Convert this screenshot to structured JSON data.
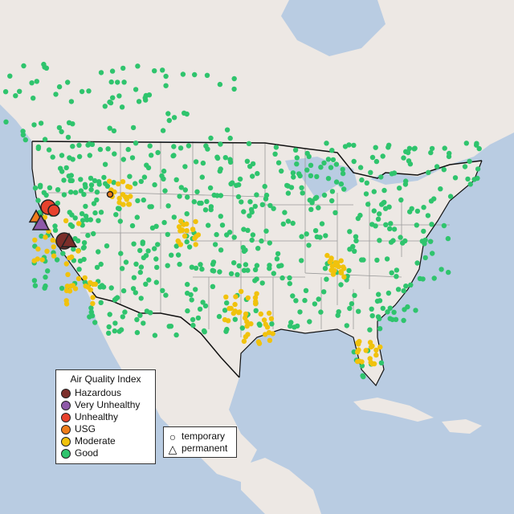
{
  "legend": {
    "title": "Air Quality Index",
    "items": [
      {
        "label": "Hazardous",
        "color": "#7b2e2a"
      },
      {
        "label": "Very Unhealthy",
        "color": "#8e59a8"
      },
      {
        "label": "Unhealthy",
        "color": "#e8422d"
      },
      {
        "label": "USG",
        "color": "#ef7d1a"
      },
      {
        "label": "Moderate",
        "color": "#f1c20c"
      },
      {
        "label": "Good",
        "color": "#2fc46d"
      }
    ]
  },
  "shape_legend": {
    "items": [
      {
        "label": "temporary",
        "icon": "circle-icon"
      },
      {
        "label": "permanent",
        "icon": "triangle-icon"
      }
    ]
  },
  "colors": {
    "land": "#ede8e4",
    "water": "#b9cce2",
    "state_border": "#9a9a9a",
    "national_border": "#111111"
  }
}
